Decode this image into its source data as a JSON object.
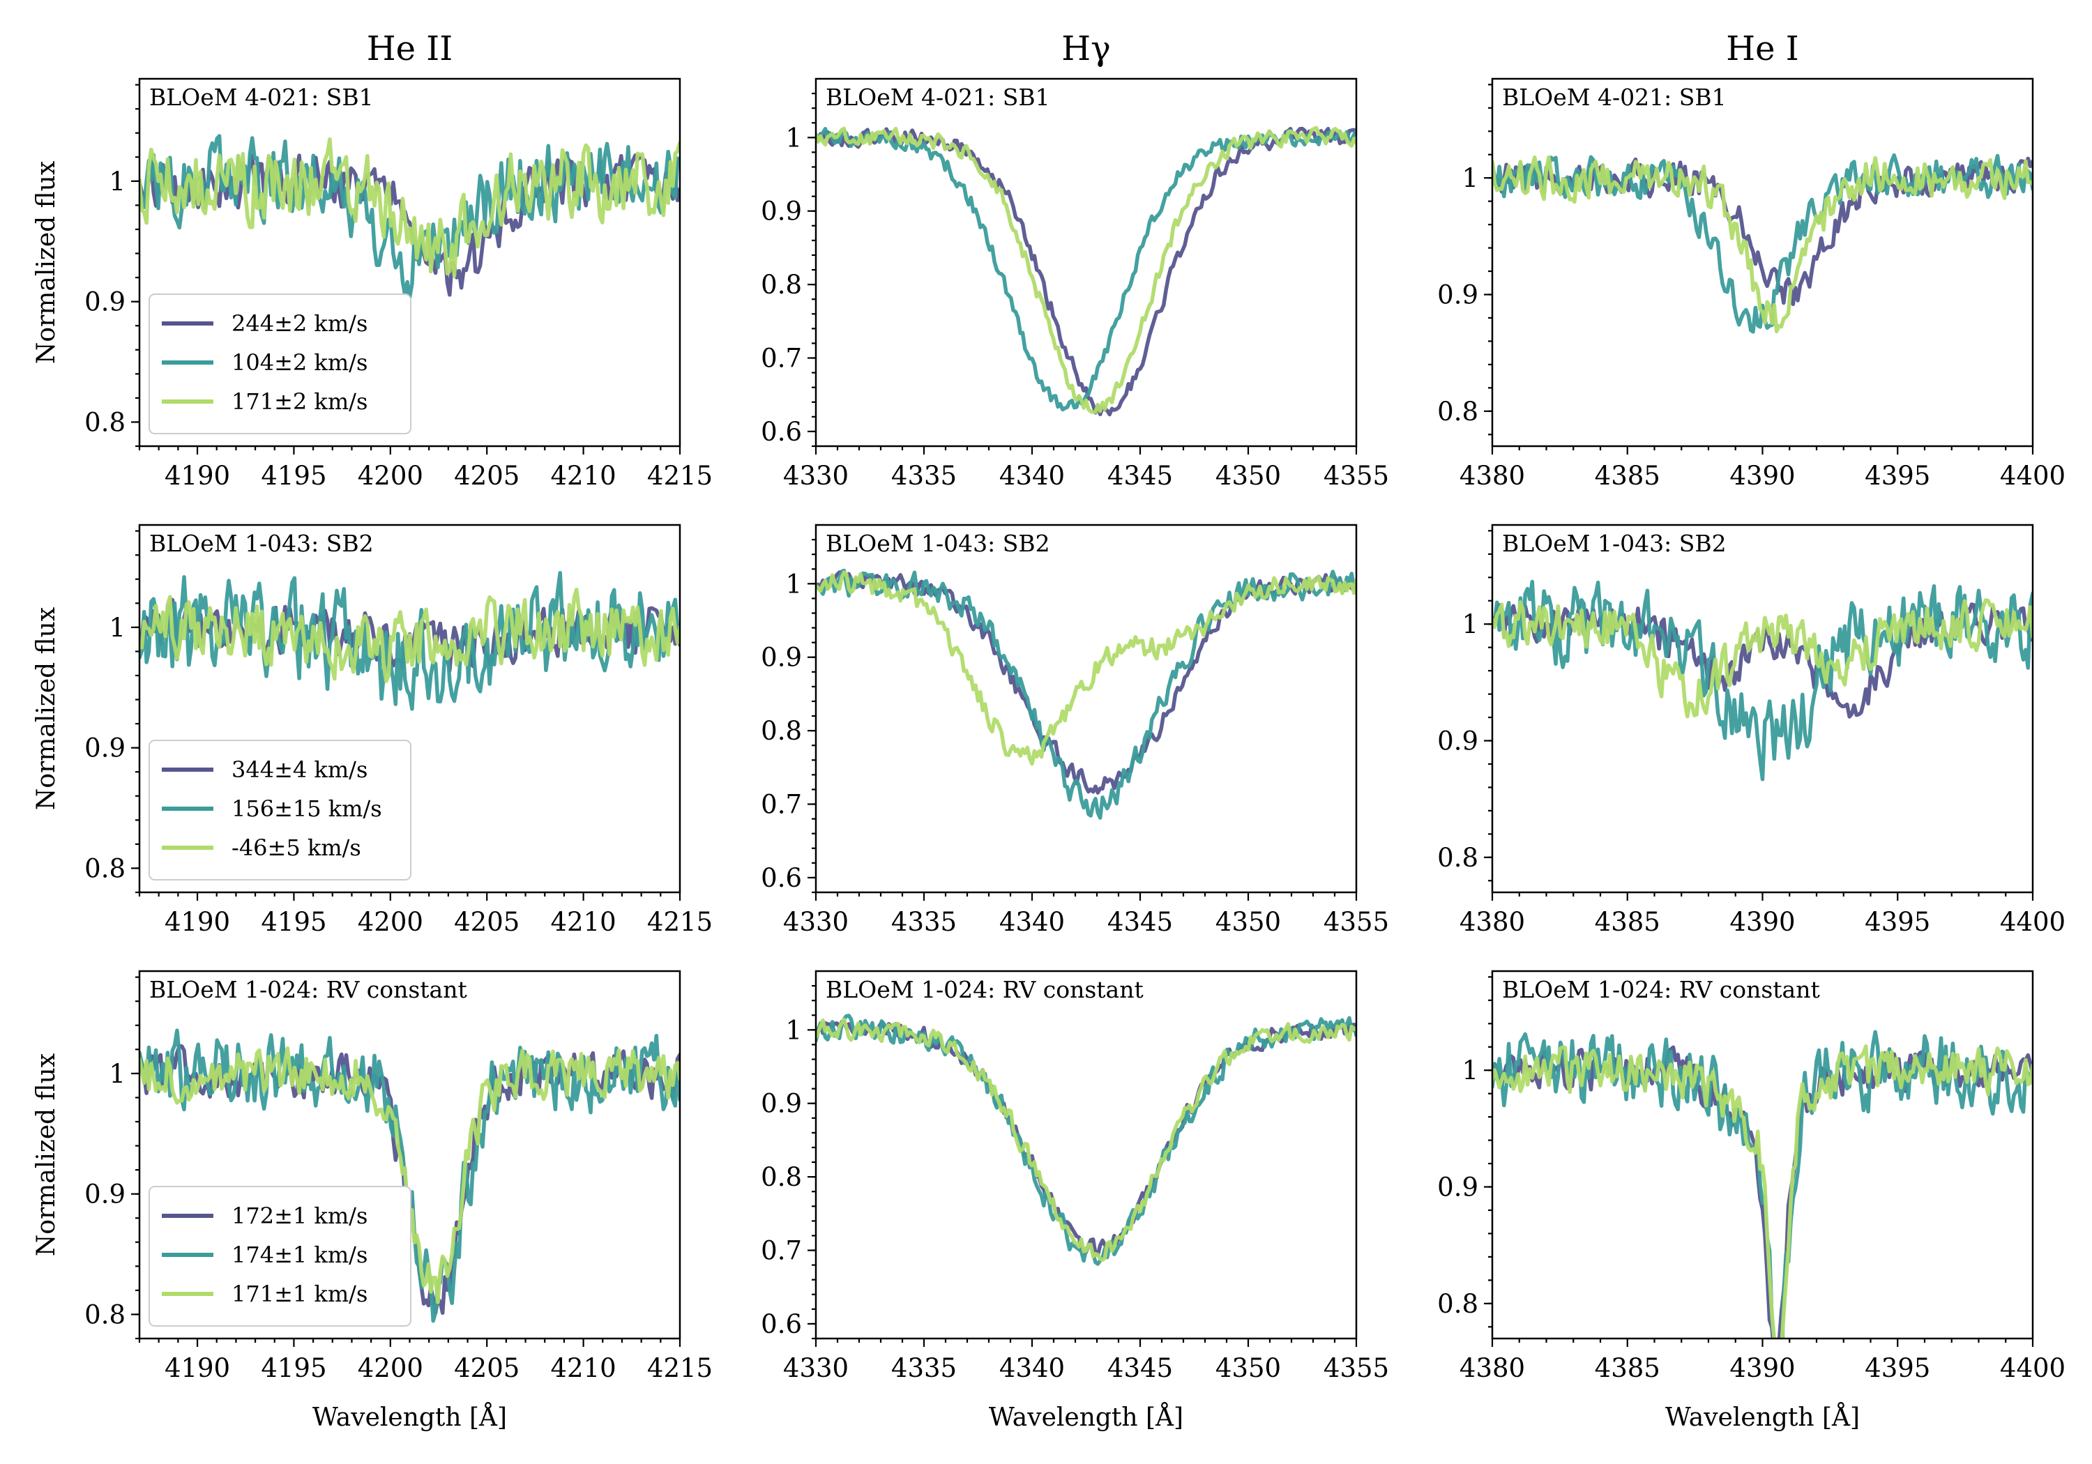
{
  "colors": {
    "c1": "#56558f",
    "c2": "#3a9c9b",
    "c3": "#b0db6a"
  },
  "columns": [
    {
      "title": "He II",
      "xlabel": "Wavelength [Å]",
      "xlim": [
        4187,
        4215
      ],
      "xticks": [
        4190,
        4195,
        4200,
        4205,
        4210,
        4215
      ],
      "ylim": [
        0.78,
        1.085
      ],
      "yticks": [
        0.8,
        0.9,
        1.0
      ]
    },
    {
      "title": "Hγ",
      "xlabel": "Wavelength [Å]",
      "xlim": [
        4330,
        4355
      ],
      "xticks": [
        4330,
        4335,
        4340,
        4345,
        4350,
        4355
      ],
      "ylim": [
        0.58,
        1.08
      ],
      "yticks": [
        0.6,
        0.7,
        0.8,
        0.9,
        1.0
      ]
    },
    {
      "title": "He I",
      "xlabel": "Wavelength [Å]",
      "xlim": [
        4380,
        4400
      ],
      "xticks": [
        4380,
        4385,
        4390,
        4395,
        4400
      ],
      "ylim": [
        0.77,
        1.085
      ],
      "yticks": [
        0.8,
        0.9,
        1.0
      ]
    }
  ],
  "ylabel": "Normalized flux",
  "rows": [
    {
      "label": "BLOeM 4-021: SB1",
      "legend": [
        "244±2 km/s",
        "104±2 km/s",
        "171±2 km/s"
      ]
    },
    {
      "label": "BLOeM 1-043: SB2",
      "legend": [
        "344±4 km/s",
        "156±15 km/s",
        "-46±5 km/s"
      ]
    },
    {
      "label": "BLOeM 1-024: RV constant",
      "legend": [
        "172±1 km/s",
        "174±1 km/s",
        "171±1 km/s"
      ]
    }
  ],
  "chart_data": [
    {
      "type": "line",
      "title": "He II — BLOeM 4-021: SB1",
      "xlabel": "",
      "ylabel": "Normalized flux",
      "xlim": [
        4187,
        4215
      ],
      "ylim": [
        0.78,
        1.085
      ],
      "series": [
        {
          "name": "244±2 km/s",
          "lines": [
            {
              "center": 4203.4,
              "depth": 0.075,
              "width": 1.9
            }
          ],
          "noise": 0.013,
          "seed": 11
        },
        {
          "name": "104±2 km/s",
          "lines": [
            {
              "center": 4201.5,
              "depth": 0.065,
              "width": 2.0
            }
          ],
          "noise": 0.02,
          "seed": 12
        },
        {
          "name": "171±2 km/s",
          "lines": [
            {
              "center": 4202.6,
              "depth": 0.06,
              "width": 1.7
            }
          ],
          "noise": 0.02,
          "seed": 13
        }
      ]
    },
    {
      "type": "line",
      "title": "Hγ — BLOeM 4-021: SB1",
      "xlabel": "",
      "ylabel": "",
      "xlim": [
        4330,
        4355
      ],
      "ylim": [
        0.58,
        1.08
      ],
      "series": [
        {
          "name": "244±2 km/s",
          "lines": [
            {
              "center": 4343.4,
              "depth": 0.37,
              "width": 2.6
            }
          ],
          "noise": 0.007,
          "seed": 21
        },
        {
          "name": "104±2 km/s",
          "lines": [
            {
              "center": 4341.6,
              "depth": 0.37,
              "width": 2.6
            }
          ],
          "noise": 0.007,
          "seed": 22
        },
        {
          "name": "171±2 km/s",
          "lines": [
            {
              "center": 4342.9,
              "depth": 0.37,
              "width": 2.5
            }
          ],
          "noise": 0.007,
          "seed": 23
        }
      ]
    },
    {
      "type": "line",
      "title": "He I — BLOeM 4-021: SB1",
      "xlabel": "",
      "ylabel": "",
      "xlim": [
        4380,
        4400
      ],
      "ylim": [
        0.77,
        1.085
      ],
      "series": [
        {
          "name": "244±2 km/s",
          "lines": [
            {
              "center": 4391.0,
              "depth": 0.1,
              "width": 1.3
            }
          ],
          "noise": 0.009,
          "seed": 31
        },
        {
          "name": "104±2 km/s",
          "lines": [
            {
              "center": 4389.7,
              "depth": 0.12,
              "width": 1.3
            }
          ],
          "noise": 0.011,
          "seed": 32
        },
        {
          "name": "171±2 km/s",
          "lines": [
            {
              "center": 4390.5,
              "depth": 0.12,
              "width": 1.1
            }
          ],
          "noise": 0.011,
          "seed": 33
        }
      ]
    },
    {
      "type": "line",
      "title": "He II — BLOeM 1-043: SB2",
      "xlabel": "",
      "ylabel": "Normalized flux",
      "xlim": [
        4187,
        4215
      ],
      "ylim": [
        0.78,
        1.085
      ],
      "series": [
        {
          "name": "344±4 km/s",
          "lines": [
            {
              "center": 4203,
              "depth": 0.015,
              "width": 3
            }
          ],
          "noise": 0.013,
          "seed": 41
        },
        {
          "name": "156±15 km/s",
          "lines": [
            {
              "center": 4201,
              "depth": 0.03,
              "width": 3
            }
          ],
          "noise": 0.026,
          "seed": 42
        },
        {
          "name": "-46±5 km/s",
          "lines": [
            {
              "center": 4199,
              "depth": 0.02,
              "width": 3
            }
          ],
          "noise": 0.017,
          "seed": 43
        }
      ]
    },
    {
      "type": "line",
      "title": "Hγ — BLOeM 1-043: SB2",
      "xlabel": "",
      "ylabel": "",
      "xlim": [
        4330,
        4355
      ],
      "ylim": [
        0.58,
        1.08
      ],
      "series": [
        {
          "name": "344±4 km/s",
          "lines": [
            {
              "center": 4341.0,
              "depth": 0.16,
              "width": 2.4
            },
            {
              "center": 4344.6,
              "depth": 0.2,
              "width": 2.4
            }
          ],
          "noise": 0.008,
          "seed": 51
        },
        {
          "name": "156±15 km/s",
          "lines": [
            {
              "center": 4342.9,
              "depth": 0.3,
              "width": 2.8
            }
          ],
          "noise": 0.012,
          "seed": 52
        },
        {
          "name": "-46±5 km/s",
          "lines": [
            {
              "center": 4339.7,
              "depth": 0.23,
              "width": 2.4
            },
            {
              "center": 4346.2,
              "depth": 0.08,
              "width": 2.0
            }
          ],
          "noise": 0.01,
          "seed": 53
        }
      ]
    },
    {
      "type": "line",
      "title": "He I — BLOeM 1-043: SB2",
      "xlabel": "",
      "ylabel": "",
      "xlim": [
        4380,
        4400
      ],
      "ylim": [
        0.77,
        1.085
      ],
      "series": [
        {
          "name": "344±4 km/s",
          "lines": [
            {
              "center": 4388.5,
              "depth": 0.045,
              "width": 1.2
            },
            {
              "center": 4393.2,
              "depth": 0.07,
              "width": 1.2
            }
          ],
          "noise": 0.011,
          "seed": 61
        },
        {
          "name": "156±15 km/s",
          "lines": [
            {
              "center": 4390.2,
              "depth": 0.1,
              "width": 1.6
            }
          ],
          "noise": 0.022,
          "seed": 62
        },
        {
          "name": "-46±5 km/s",
          "lines": [
            {
              "center": 4387.5,
              "depth": 0.06,
              "width": 1.3
            },
            {
              "center": 4392.8,
              "depth": 0.035,
              "width": 1.2
            }
          ],
          "noise": 0.013,
          "seed": 63
        }
      ]
    },
    {
      "type": "line",
      "title": "He II — BLOeM 1-024: RV constant",
      "xlabel": "Wavelength [Å]",
      "ylabel": "Normalized flux",
      "xlim": [
        4187,
        4215
      ],
      "ylim": [
        0.78,
        1.085
      ],
      "series": [
        {
          "name": "172±1 km/s",
          "lines": [
            {
              "center": 4202.3,
              "depth": 0.19,
              "width": 1.3
            }
          ],
          "noise": 0.012,
          "seed": 71
        },
        {
          "name": "174±1 km/s",
          "lines": [
            {
              "center": 4202.4,
              "depth": 0.19,
              "width": 1.3
            }
          ],
          "noise": 0.02,
          "seed": 72
        },
        {
          "name": "171±1 km/s",
          "lines": [
            {
              "center": 4202.3,
              "depth": 0.18,
              "width": 1.3
            }
          ],
          "noise": 0.013,
          "seed": 73
        }
      ]
    },
    {
      "type": "line",
      "title": "Hγ — BLOeM 1-024: RV constant",
      "xlabel": "Wavelength [Å]",
      "ylabel": "",
      "xlim": [
        4330,
        4355
      ],
      "ylim": [
        0.58,
        1.08
      ],
      "series": [
        {
          "name": "172±1 km/s",
          "lines": [
            {
              "center": 4343.0,
              "depth": 0.3,
              "width": 3.0
            }
          ],
          "noise": 0.008,
          "seed": 81
        },
        {
          "name": "174±1 km/s",
          "lines": [
            {
              "center": 4343.0,
              "depth": 0.31,
              "width": 3.0
            }
          ],
          "noise": 0.011,
          "seed": 82
        },
        {
          "name": "171±1 km/s",
          "lines": [
            {
              "center": 4343.0,
              "depth": 0.3,
              "width": 3.0
            }
          ],
          "noise": 0.008,
          "seed": 83
        }
      ]
    },
    {
      "type": "line",
      "title": "He I — BLOeM 1-024: RV constant",
      "xlabel": "Wavelength [Å]",
      "ylabel": "",
      "xlim": [
        4380,
        4400
      ],
      "ylim": [
        0.77,
        1.085
      ],
      "series": [
        {
          "name": "172±1 km/s",
          "lines": [
            {
              "center": 4390.5,
              "depth": 0.2,
              "width": 0.35
            },
            {
              "center": 4390.0,
              "depth": 0.05,
              "width": 1.3
            }
          ],
          "noise": 0.011,
          "seed": 91
        },
        {
          "name": "174±1 km/s",
          "lines": [
            {
              "center": 4390.6,
              "depth": 0.19,
              "width": 0.35
            },
            {
              "center": 4390.0,
              "depth": 0.05,
              "width": 1.3
            }
          ],
          "noise": 0.02,
          "seed": 92
        },
        {
          "name": "171±1 km/s",
          "lines": [
            {
              "center": 4390.6,
              "depth": 0.2,
              "width": 0.33
            },
            {
              "center": 4390.0,
              "depth": 0.05,
              "width": 1.3
            }
          ],
          "noise": 0.012,
          "seed": 93
        }
      ]
    }
  ]
}
